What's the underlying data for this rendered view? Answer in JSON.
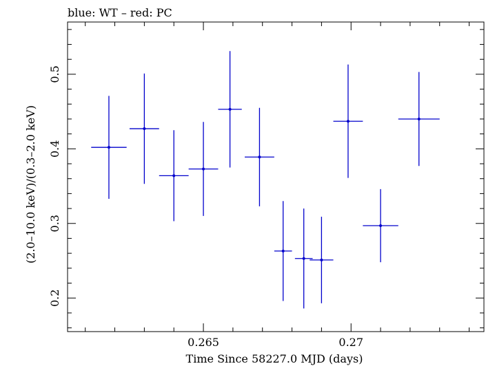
{
  "chart_data": {
    "type": "scatter",
    "title": "blue: WT – red: PC",
    "xlabel": "Time Since 58227.0 MJD (days)",
    "ylabel": "(2.0–10.0 keV)/(0.3–2.0 keV)",
    "xlim": [
      0.2604,
      0.2745
    ],
    "ylim": [
      0.155,
      0.57
    ],
    "x_ticks": [
      0.265,
      0.27
    ],
    "x_tick_labels": [
      "0.265",
      "0.27"
    ],
    "y_ticks": [
      0.2,
      0.3,
      0.4,
      0.5
    ],
    "y_tick_labels": [
      "0.2",
      "0.3",
      "0.4",
      "0.5"
    ],
    "grid": false,
    "series": [
      {
        "color": "#0000cc",
        "points": [
          {
            "x": 0.2618,
            "xerr": 0.0006,
            "y": 0.402,
            "yerr_low": 0.069,
            "yerr_high": 0.069
          },
          {
            "x": 0.263,
            "xerr": 0.0005,
            "y": 0.427,
            "yerr_low": 0.074,
            "yerr_high": 0.074
          },
          {
            "x": 0.264,
            "xerr": 0.0005,
            "y": 0.364,
            "yerr_low": 0.061,
            "yerr_high": 0.061
          },
          {
            "x": 0.265,
            "xerr": 0.0005,
            "y": 0.373,
            "yerr_low": 0.063,
            "yerr_high": 0.063
          },
          {
            "x": 0.2659,
            "xerr": 0.0004,
            "y": 0.453,
            "yerr_low": 0.078,
            "yerr_high": 0.078
          },
          {
            "x": 0.2669,
            "xerr": 0.0005,
            "y": 0.389,
            "yerr_low": 0.066,
            "yerr_high": 0.066
          },
          {
            "x": 0.2677,
            "xerr": 0.0003,
            "y": 0.263,
            "yerr_low": 0.067,
            "yerr_high": 0.067
          },
          {
            "x": 0.2684,
            "xerr": 0.0003,
            "y": 0.253,
            "yerr_low": 0.067,
            "yerr_high": 0.067
          },
          {
            "x": 0.269,
            "xerr": 0.0004,
            "y": 0.251,
            "yerr_low": 0.058,
            "yerr_high": 0.058
          },
          {
            "x": 0.2699,
            "xerr": 0.0005,
            "y": 0.437,
            "yerr_low": 0.076,
            "yerr_high": 0.076
          },
          {
            "x": 0.271,
            "xerr": 0.0006,
            "y": 0.297,
            "yerr_low": 0.049,
            "yerr_high": 0.049
          },
          {
            "x": 0.2723,
            "xerr": 0.0007,
            "y": 0.44,
            "yerr_low": 0.063,
            "yerr_high": 0.063
          }
        ]
      }
    ]
  }
}
